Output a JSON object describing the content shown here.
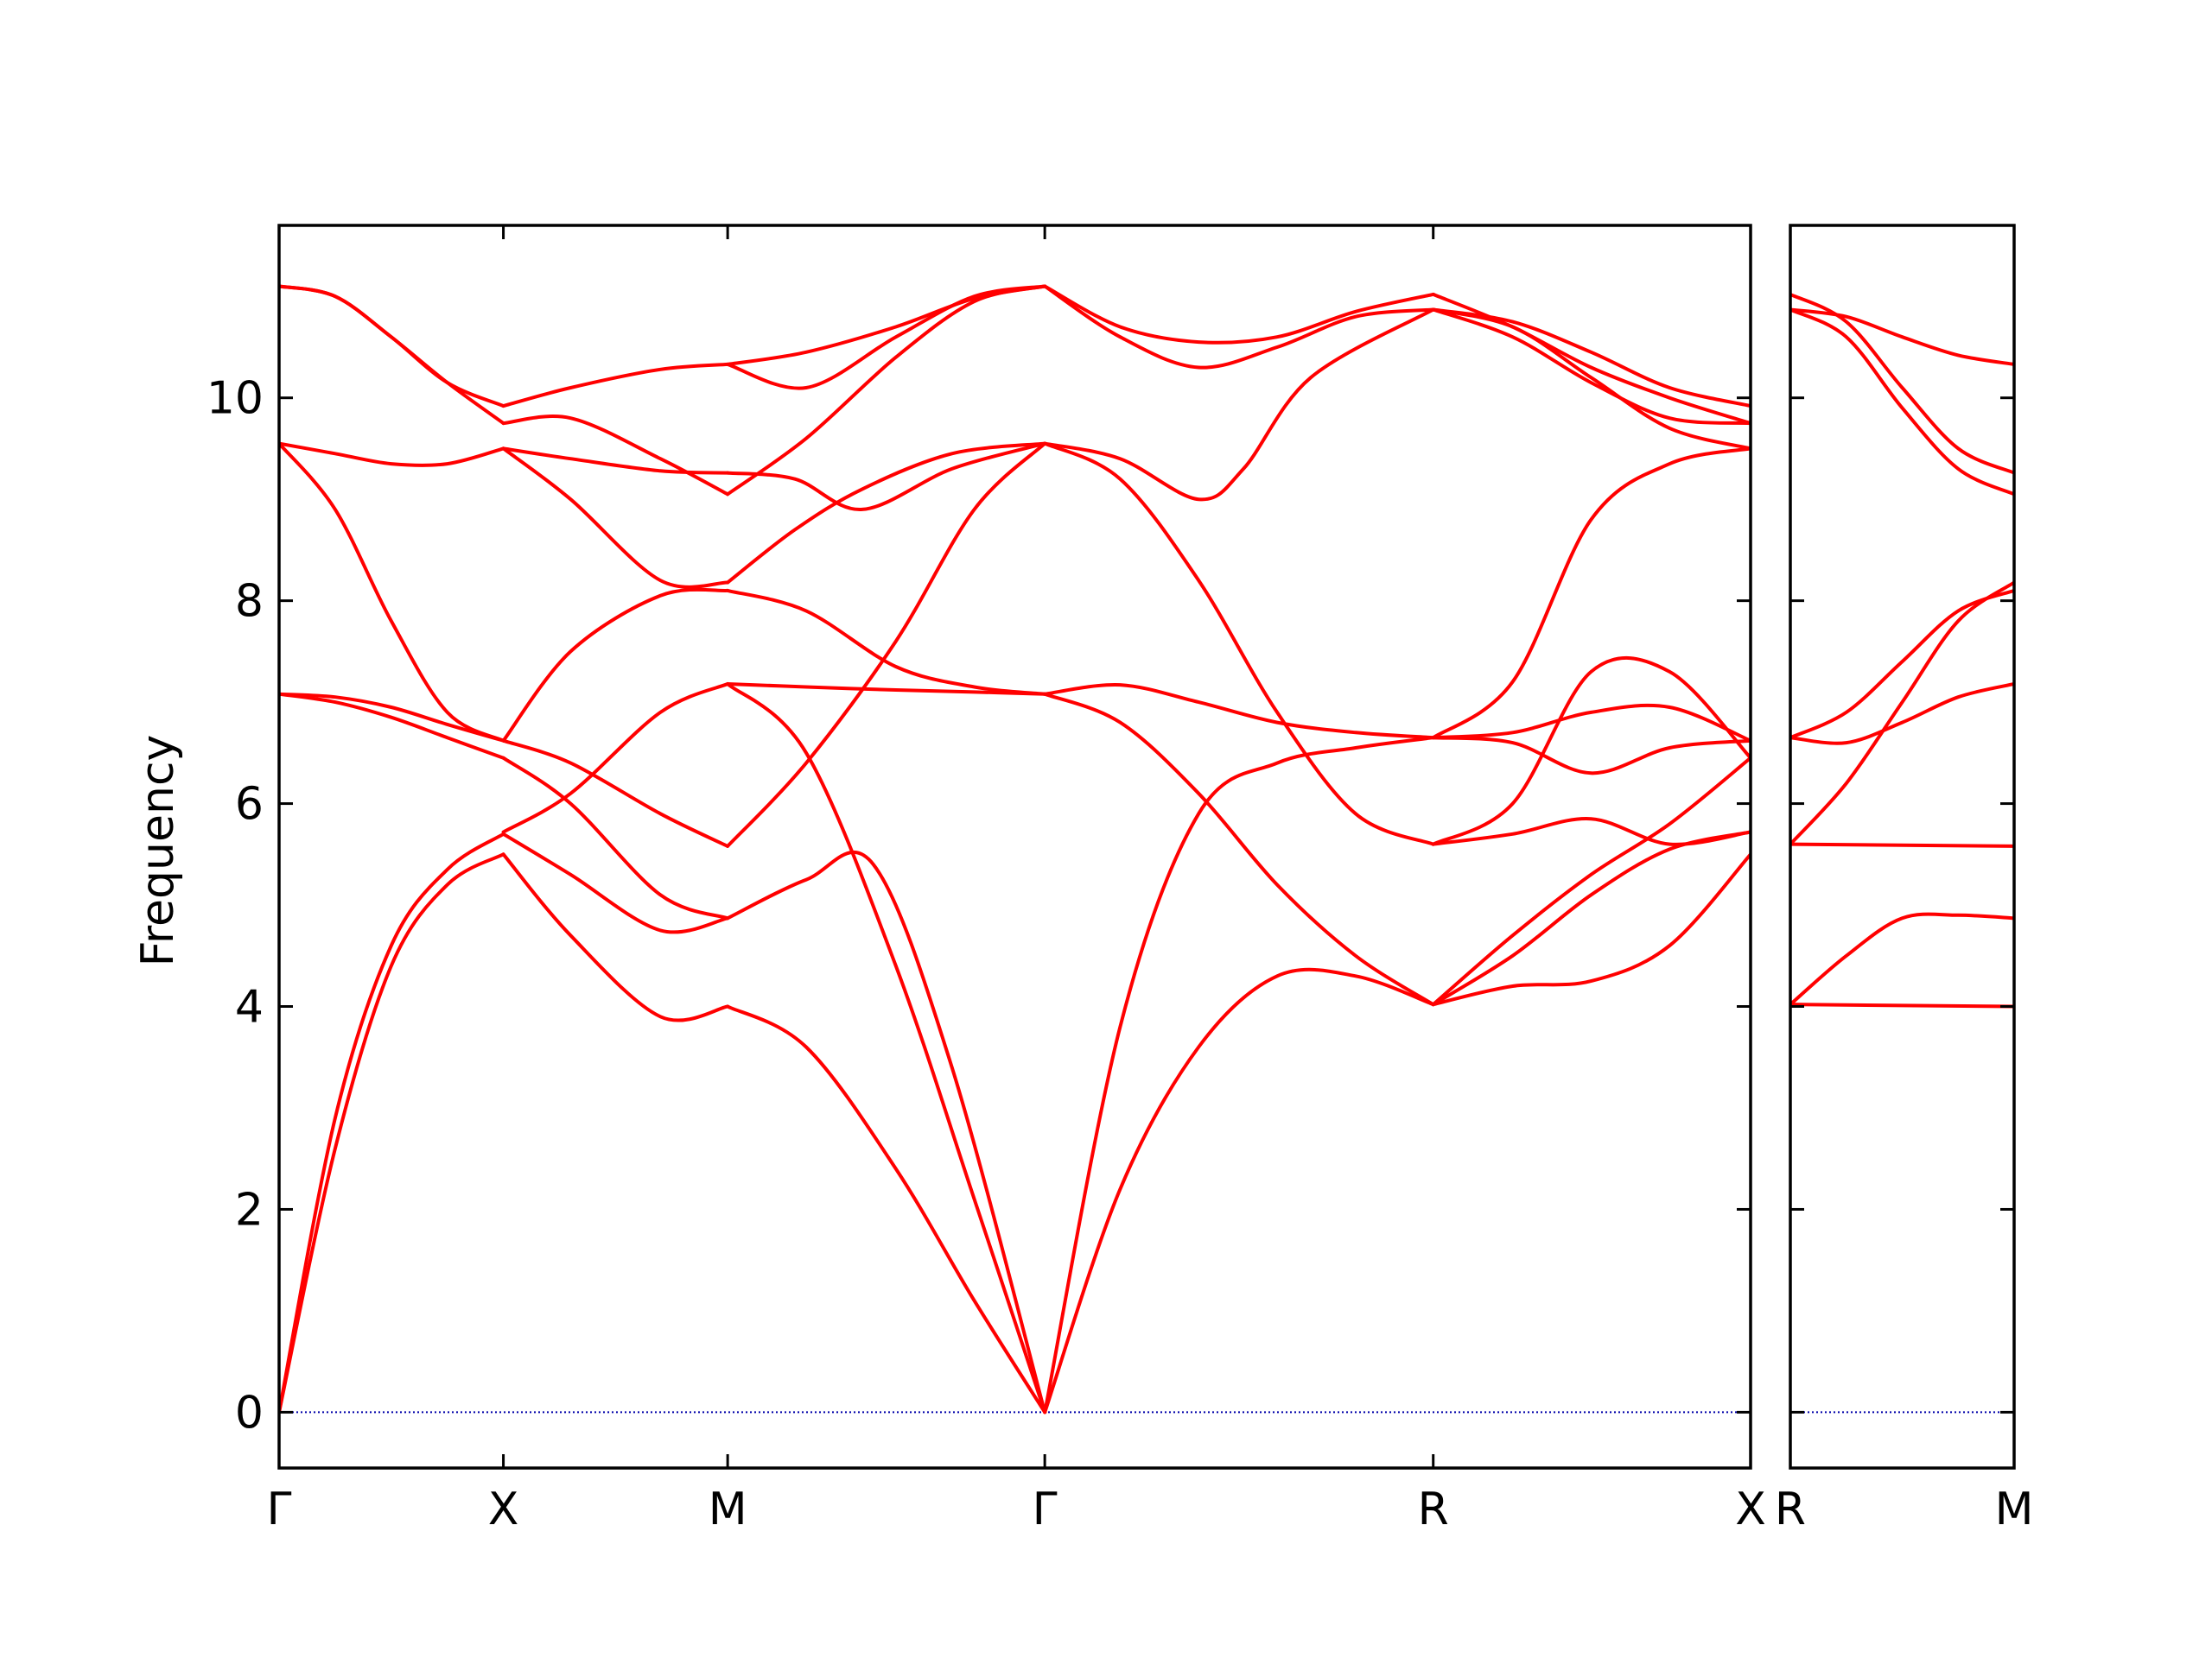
{
  "chart_data": {
    "type": "line",
    "ylabel": "Frequency",
    "xlabel": "",
    "title": "",
    "ylim": [
      -0.55,
      11.7
    ],
    "yticks": [
      0,
      2,
      4,
      6,
      8,
      10
    ],
    "grid": false,
    "colors": {
      "bands": "#ff0000",
      "zero_line": "#0000aa"
    },
    "panels": [
      {
        "labels": [
          "Γ",
          "X",
          "M",
          "Γ",
          "R",
          "X"
        ],
        "ticks": [
          0,
          1,
          2,
          3.414,
          5.146,
          6.561
        ],
        "xlim": [
          0,
          6.561
        ],
        "bands": [
          {
            "x": [
              0,
              0.25,
              0.5,
              0.75,
              1
            ],
            "y": [
              0,
              2.6,
              4.4,
              5.2,
              5.5
            ]
          },
          {
            "x": [
              0,
              0.25,
              0.5,
              0.75,
              1
            ],
            "y": [
              0,
              2.9,
              4.6,
              5.35,
              5.7
            ]
          },
          {
            "x": [
              0,
              0.25,
              0.5,
              0.75,
              1
            ],
            "y": [
              7.08,
              7.0,
              6.85,
              6.65,
              6.45
            ]
          },
          {
            "x": [
              0,
              0.25,
              0.5,
              0.75,
              1
            ],
            "y": [
              7.08,
              7.05,
              6.95,
              6.78,
              6.62
            ]
          },
          {
            "x": [
              0,
              0.25,
              0.5,
              0.75,
              1
            ],
            "y": [
              9.55,
              8.9,
              7.8,
              6.9,
              6.62
            ]
          },
          {
            "x": [
              0,
              0.25,
              0.5,
              0.75,
              1
            ],
            "y": [
              9.55,
              9.45,
              9.35,
              9.35,
              9.5
            ]
          },
          {
            "x": [
              0,
              0.25,
              0.5,
              0.75,
              1
            ],
            "y": [
              11.1,
              11.0,
              10.6,
              10.15,
              9.75
            ]
          },
          {
            "x": [
              0,
              0.25,
              0.5,
              0.75,
              1
            ],
            "y": [
              11.1,
              11.0,
              10.6,
              10.15,
              9.92
            ]
          },
          {
            "x": [
              1,
              1.3,
              1.7,
              2
            ],
            "y": [
              5.5,
              4.7,
              3.9,
              4.0
            ]
          },
          {
            "x": [
              1,
              1.3,
              1.7,
              2
            ],
            "y": [
              5.7,
              5.3,
              4.75,
              4.87
            ]
          },
          {
            "x": [
              1,
              1.3,
              1.7,
              2
            ],
            "y": [
              5.72,
              6.1,
              6.9,
              7.18
            ]
          },
          {
            "x": [
              1,
              1.3,
              1.7,
              2
            ],
            "y": [
              6.45,
              6.0,
              5.1,
              4.87
            ]
          },
          {
            "x": [
              1,
              1.3,
              1.7,
              2
            ],
            "y": [
              6.62,
              6.4,
              5.9,
              5.58
            ]
          },
          {
            "x": [
              1,
              1.3,
              1.7,
              2
            ],
            "y": [
              6.62,
              7.5,
              8.05,
              8.1
            ]
          },
          {
            "x": [
              1,
              1.3,
              1.7,
              2
            ],
            "y": [
              9.5,
              9.0,
              8.2,
              8.18
            ]
          },
          {
            "x": [
              1,
              1.3,
              1.7,
              2
            ],
            "y": [
              9.5,
              9.4,
              9.28,
              9.26
            ]
          },
          {
            "x": [
              1,
              1.3,
              1.7,
              2
            ],
            "y": [
              9.75,
              9.8,
              9.4,
              9.05
            ]
          },
          {
            "x": [
              1,
              1.3,
              1.7,
              2
            ],
            "y": [
              9.92,
              10.1,
              10.28,
              10.33
            ]
          },
          {
            "x": [
              2,
              2.35,
              2.75,
              3.1,
              3.414
            ],
            "y": [
              4.0,
              3.6,
              2.4,
              1.1,
              0
            ]
          },
          {
            "x": [
              2,
              2.35,
              2.75,
              3.1,
              3.414
            ],
            "y": [
              7.18,
              6.5,
              4.4,
              2.1,
              0
            ]
          },
          {
            "x": [
              2,
              2.35,
              2.65,
              3.0,
              3.414
            ],
            "y": [
              4.87,
              5.25,
              5.4,
              3.4,
              0
            ]
          },
          {
            "x": [
              2,
              2.35,
              2.75,
              3.1,
              3.414
            ],
            "y": [
              5.58,
              6.4,
              7.6,
              8.9,
              9.55
            ]
          },
          {
            "x": [
              2,
              2.35,
              2.75,
              3.1,
              3.414
            ],
            "y": [
              8.1,
              7.9,
              7.35,
              7.15,
              7.08
            ]
          },
          {
            "x": [
              2,
              2.35,
              2.75,
              3.1,
              3.414
            ],
            "y": [
              7.18,
              7.15,
              7.12,
              7.1,
              7.08
            ]
          },
          {
            "x": [
              2,
              2.3,
              2.6,
              3.0,
              3.414
            ],
            "y": [
              8.18,
              8.7,
              9.1,
              9.45,
              9.55
            ]
          },
          {
            "x": [
              2,
              2.3,
              2.6,
              3.0,
              3.414
            ],
            "y": [
              9.26,
              9.2,
              8.9,
              9.3,
              9.55
            ]
          },
          {
            "x": [
              2,
              2.35,
              2.75,
              3.1,
              3.414
            ],
            "y": [
              9.05,
              9.6,
              10.4,
              10.95,
              11.1
            ]
          },
          {
            "x": [
              2,
              2.35,
              2.75,
              3.1,
              3.414
            ],
            "y": [
              10.33,
              10.1,
              10.6,
              11.0,
              11.1
            ]
          },
          {
            "x": [
              2,
              2.35,
              2.75,
              3.1,
              3.414
            ],
            "y": [
              10.33,
              10.45,
              10.7,
              10.98,
              11.1
            ]
          },
          {
            "x": [
              3.414,
              3.75,
              4.1,
              4.45,
              4.8,
              5.146
            ],
            "y": [
              0,
              3.8,
              5.9,
              6.4,
              6.55,
              6.65
            ]
          },
          {
            "x": [
              3.414,
              3.75,
              4.1,
              4.45,
              4.8,
              5.146
            ],
            "y": [
              0,
              2.2,
              3.6,
              4.3,
              4.3,
              4.02
            ]
          },
          {
            "x": [
              3.414,
              3.75,
              4.1,
              4.45,
              4.8,
              5.146
            ],
            "y": [
              7.08,
              6.8,
              6.1,
              5.2,
              4.5,
              4.02
            ]
          },
          {
            "x": [
              3.414,
              3.75,
              4.1,
              4.45,
              4.8,
              5.146
            ],
            "y": [
              7.08,
              7.17,
              7.0,
              6.8,
              6.7,
              6.65
            ]
          },
          {
            "x": [
              3.414,
              3.75,
              4.1,
              4.45,
              4.8,
              5.146
            ],
            "y": [
              9.55,
              9.2,
              8.2,
              6.9,
              5.9,
              5.6
            ]
          },
          {
            "x": [
              3.414,
              3.75,
              4.1,
              4.3,
              4.6,
              5.146
            ],
            "y": [
              9.55,
              9.4,
              9.0,
              9.3,
              10.2,
              10.87
            ]
          },
          {
            "x": [
              3.414,
              3.75,
              4.1,
              4.45,
              4.8,
              5.146
            ],
            "y": [
              11.1,
              10.7,
              10.55,
              10.6,
              10.85,
              11.02
            ]
          },
          {
            "x": [
              3.414,
              3.75,
              4.1,
              4.45,
              4.8,
              5.146
            ],
            "y": [
              11.1,
              10.6,
              10.3,
              10.5,
              10.8,
              10.87
            ]
          },
          {
            "x": [
              5.146,
              5.5,
              5.85,
              6.2,
              6.561
            ],
            "y": [
              4.02,
              4.2,
              4.25,
              4.6,
              5.5
            ]
          },
          {
            "x": [
              5.146,
              5.5,
              5.85,
              6.2,
              6.561
            ],
            "y": [
              4.02,
              4.5,
              5.1,
              5.55,
              5.72
            ]
          },
          {
            "x": [
              5.146,
              5.5,
              5.85,
              6.2,
              6.561
            ],
            "y": [
              4.02,
              4.7,
              5.3,
              5.8,
              6.45
            ]
          },
          {
            "x": [
              5.146,
              5.5,
              5.85,
              6.2,
              6.561
            ],
            "y": [
              5.6,
              5.7,
              5.85,
              5.6,
              5.72
            ]
          },
          {
            "x": [
              5.146,
              5.5,
              5.85,
              6.2,
              6.561
            ],
            "y": [
              5.6,
              6.0,
              7.3,
              7.3,
              6.45
            ]
          },
          {
            "x": [
              5.146,
              5.5,
              5.85,
              6.2,
              6.561
            ],
            "y": [
              6.65,
              6.6,
              6.3,
              6.55,
              6.62
            ]
          },
          {
            "x": [
              5.146,
              5.5,
              5.85,
              6.2,
              6.561
            ],
            "y": [
              6.65,
              6.7,
              6.9,
              6.95,
              6.62
            ]
          },
          {
            "x": [
              5.146,
              5.5,
              5.85,
              6.2,
              6.561
            ],
            "y": [
              6.65,
              7.2,
              8.8,
              9.35,
              9.5
            ]
          },
          {
            "x": [
              5.146,
              5.5,
              5.85,
              6.2,
              6.561
            ],
            "y": [
              10.87,
              10.7,
              10.2,
              9.7,
              9.5
            ]
          },
          {
            "x": [
              5.146,
              5.5,
              5.85,
              6.2,
              6.561
            ],
            "y": [
              10.87,
              10.6,
              10.15,
              9.8,
              9.75
            ]
          },
          {
            "x": [
              5.146,
              5.5,
              5.85,
              6.2,
              6.561
            ],
            "y": [
              11.02,
              10.7,
              10.3,
              10.0,
              9.75
            ]
          },
          {
            "x": [
              5.146,
              5.5,
              5.85,
              6.2,
              6.561
            ],
            "y": [
              10.87,
              10.75,
              10.45,
              10.1,
              9.92
            ]
          }
        ]
      },
      {
        "labels": [
          "R",
          "M"
        ],
        "ticks": [
          0,
          1
        ],
        "xlim": [
          0,
          1
        ],
        "bands": [
          {
            "x": [
              0,
              1
            ],
            "y": [
              4.02,
              4.0
            ]
          },
          {
            "x": [
              0,
              0.25,
              0.5,
              0.75,
              1
            ],
            "y": [
              4.02,
              4.5,
              4.87,
              4.9,
              4.87
            ]
          },
          {
            "x": [
              0,
              1
            ],
            "y": [
              5.6,
              5.58
            ]
          },
          {
            "x": [
              0,
              0.25,
              0.5,
              0.75,
              1
            ],
            "y": [
              5.6,
              6.2,
              7.0,
              7.8,
              8.18
            ]
          },
          {
            "x": [
              0,
              0.25,
              0.5,
              0.75,
              1
            ],
            "y": [
              6.65,
              6.6,
              6.8,
              7.05,
              7.18
            ]
          },
          {
            "x": [
              0,
              0.25,
              0.5,
              0.75,
              1
            ],
            "y": [
              6.65,
              6.9,
              7.4,
              7.9,
              8.1
            ]
          },
          {
            "x": [
              0,
              0.25,
              0.5,
              0.75,
              1
            ],
            "y": [
              10.87,
              10.6,
              9.9,
              9.3,
              9.05
            ]
          },
          {
            "x": [
              0,
              0.25,
              0.5,
              0.75,
              1
            ],
            "y": [
              11.02,
              10.75,
              10.1,
              9.5,
              9.26
            ]
          },
          {
            "x": [
              0,
              0.25,
              0.5,
              0.75,
              1
            ],
            "y": [
              10.87,
              10.8,
              10.6,
              10.42,
              10.33
            ]
          }
        ]
      }
    ]
  }
}
